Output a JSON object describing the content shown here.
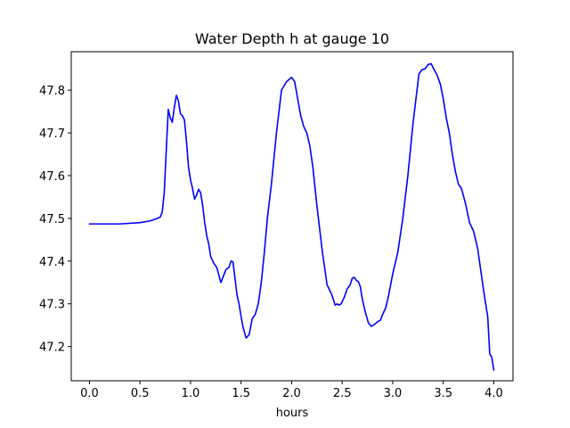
{
  "chart_data": {
    "type": "line",
    "title": "Water Depth h at gauge 10",
    "xlabel": "hours",
    "ylabel": "",
    "xlim": [
      -0.18,
      4.19
    ],
    "ylim": [
      47.12,
      47.89
    ],
    "grid": false,
    "x_ticks": [
      0.0,
      0.5,
      1.0,
      1.5,
      2.0,
      2.5,
      3.0,
      3.5,
      4.0
    ],
    "x_tick_labels": [
      "0.0",
      "0.5",
      "1.0",
      "1.5",
      "2.0",
      "2.5",
      "3.0",
      "3.5",
      "4.0"
    ],
    "y_ticks": [
      47.2,
      47.3,
      47.4,
      47.5,
      47.6,
      47.7,
      47.8
    ],
    "y_tick_labels": [
      "47.2",
      "47.3",
      "47.4",
      "47.5",
      "47.6",
      "47.7",
      "47.8"
    ],
    "series": [
      {
        "color": "#0000ff",
        "x": [
          0.0,
          0.3,
          0.5,
          0.6,
          0.65,
          0.7,
          0.72,
          0.74,
          0.76,
          0.78,
          0.8,
          0.82,
          0.84,
          0.86,
          0.88,
          0.9,
          0.92,
          0.94,
          0.96,
          0.98,
          1.0,
          1.02,
          1.04,
          1.06,
          1.08,
          1.1,
          1.12,
          1.14,
          1.16,
          1.18,
          1.2,
          1.23,
          1.26,
          1.3,
          1.35,
          1.38,
          1.4,
          1.42,
          1.44,
          1.46,
          1.48,
          1.5,
          1.52,
          1.55,
          1.58,
          1.61,
          1.64,
          1.67,
          1.7,
          1.73,
          1.76,
          1.8,
          1.85,
          1.9,
          1.95,
          2.0,
          2.03,
          2.06,
          2.09,
          2.12,
          2.15,
          2.18,
          2.21,
          2.25,
          2.3,
          2.35,
          2.4,
          2.43,
          2.45,
          2.47,
          2.49,
          2.52,
          2.55,
          2.58,
          2.6,
          2.62,
          2.64,
          2.66,
          2.68,
          2.7,
          2.73,
          2.76,
          2.79,
          2.82,
          2.85,
          2.88,
          2.9,
          2.93,
          2.96,
          3.0,
          3.05,
          3.1,
          3.15,
          3.2,
          3.23,
          3.26,
          3.29,
          3.32,
          3.35,
          3.38,
          3.41,
          3.44,
          3.47,
          3.5,
          3.53,
          3.56,
          3.59,
          3.62,
          3.65,
          3.68,
          3.72,
          3.76,
          3.8,
          3.84,
          3.87,
          3.9,
          3.92,
          3.94,
          3.96,
          3.98,
          4.0
        ],
        "y": [
          47.487,
          47.487,
          47.49,
          47.494,
          47.498,
          47.503,
          47.515,
          47.56,
          47.66,
          47.755,
          47.735,
          47.725,
          47.76,
          47.788,
          47.775,
          47.745,
          47.74,
          47.73,
          47.68,
          47.62,
          47.59,
          47.57,
          47.545,
          47.555,
          47.568,
          47.56,
          47.53,
          47.49,
          47.46,
          47.44,
          47.41,
          47.395,
          47.385,
          47.35,
          47.38,
          47.385,
          47.4,
          47.398,
          47.36,
          47.32,
          47.3,
          47.27,
          47.245,
          47.22,
          47.228,
          47.265,
          47.275,
          47.3,
          47.35,
          47.42,
          47.5,
          47.58,
          47.7,
          47.8,
          47.82,
          47.83,
          47.82,
          47.78,
          47.74,
          47.715,
          47.7,
          47.67,
          47.62,
          47.53,
          47.43,
          47.345,
          47.32,
          47.297,
          47.3,
          47.297,
          47.3,
          47.315,
          47.335,
          47.345,
          47.36,
          47.362,
          47.355,
          47.352,
          47.34,
          47.31,
          47.28,
          47.255,
          47.247,
          47.252,
          47.258,
          47.262,
          47.275,
          47.29,
          47.32,
          47.37,
          47.42,
          47.5,
          47.6,
          47.72,
          47.78,
          47.838,
          47.848,
          47.85,
          47.86,
          47.862,
          47.848,
          47.835,
          47.815,
          47.78,
          47.735,
          47.7,
          47.65,
          47.61,
          47.58,
          47.57,
          47.535,
          47.49,
          47.47,
          47.43,
          47.38,
          47.33,
          47.3,
          47.27,
          47.183,
          47.175,
          47.145
        ]
      }
    ]
  }
}
